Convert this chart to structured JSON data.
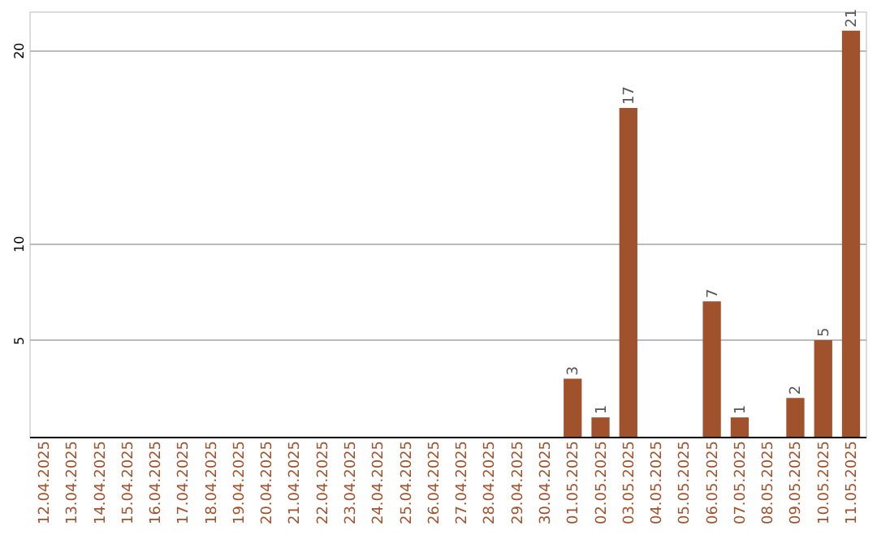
{
  "chart_data": {
    "type": "bar",
    "categories": [
      "12.04.2025",
      "13.04.2025",
      "14.04.2025",
      "15.04.2025",
      "16.04.2025",
      "17.04.2025",
      "18.04.2025",
      "19.04.2025",
      "20.04.2025",
      "21.04.2025",
      "22.04.2025",
      "23.04.2025",
      "24.04.2025",
      "25.04.2025",
      "26.04.2025",
      "27.04.2025",
      "28.04.2025",
      "29.04.2025",
      "30.04.2025",
      "01.05.2025",
      "02.05.2025",
      "03.05.2025",
      "04.05.2025",
      "05.05.2025",
      "06.05.2025",
      "07.05.2025",
      "08.05.2025",
      "09.05.2025",
      "10.05.2025",
      "11.05.2025"
    ],
    "values": [
      0,
      0,
      0,
      0,
      0,
      0,
      0,
      0,
      0,
      0,
      0,
      0,
      0,
      0,
      0,
      0,
      0,
      0,
      0,
      3,
      1,
      17,
      0,
      0,
      7,
      1,
      0,
      2,
      5,
      21
    ],
    "value_labels": [
      null,
      null,
      null,
      null,
      null,
      null,
      null,
      null,
      null,
      null,
      null,
      null,
      null,
      null,
      null,
      null,
      null,
      null,
      null,
      "3",
      "1",
      "17",
      null,
      null,
      "7",
      "1",
      null,
      "2",
      "5",
      "21"
    ],
    "color": "#a0522d",
    "ylim": [
      0,
      22
    ],
    "yticks": [
      5,
      10,
      20
    ],
    "grid": "y"
  }
}
